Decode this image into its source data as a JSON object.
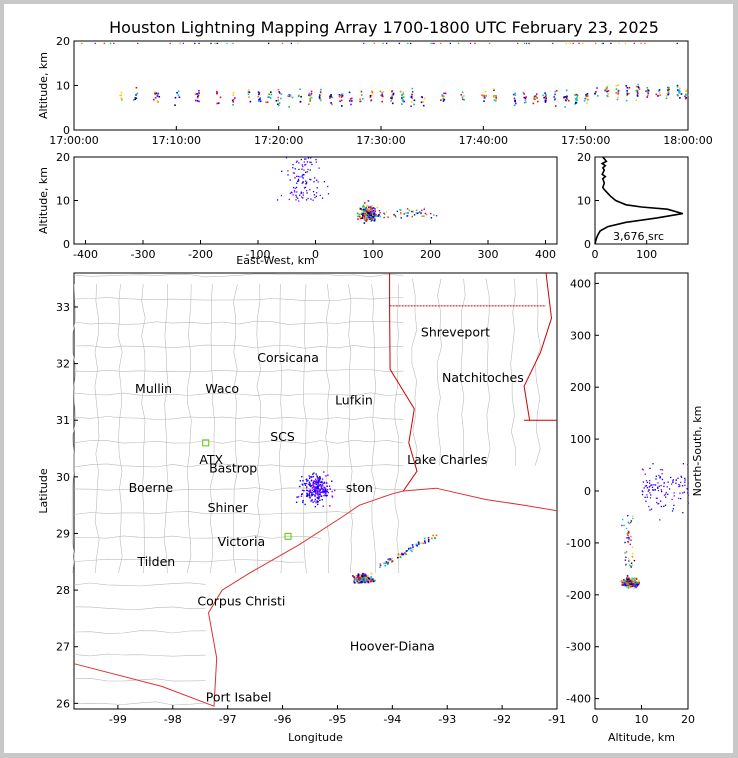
{
  "title": "Houston Lightning Mapping Array 1700-1800 UTC February 23, 2025",
  "chart_data": [
    {
      "id": "time_height",
      "type": "scatter",
      "ylabel": "Altitude, km",
      "xlabel": "",
      "xticks": [
        "17:00:00",
        "17:10:00",
        "17:20:00",
        "17:30:00",
        "17:40:00",
        "17:50:00",
        "18:00:00"
      ],
      "xlim_minutes": [
        0,
        60
      ],
      "yticks": [
        0,
        10,
        20
      ],
      "ylim": [
        0,
        20
      ],
      "activity_minutes": [
        4.5,
        6,
        8,
        10,
        12,
        14,
        15.5,
        17,
        18,
        19,
        20,
        21,
        22,
        23,
        24,
        25,
        26,
        27,
        28,
        29,
        30,
        31,
        32,
        33,
        34,
        36,
        38,
        40,
        41,
        43,
        44,
        45,
        46,
        47,
        48,
        49,
        50,
        51,
        52,
        53,
        54,
        55,
        56,
        57,
        58,
        59,
        59.8
      ]
    },
    {
      "id": "ew_height",
      "type": "scatter",
      "xlabel": "East-West, km",
      "ylabel": "Altitude, km",
      "xticks": [
        -400,
        -300,
        -200,
        -100,
        0,
        100,
        200,
        300,
        400
      ],
      "xlim": [
        -420,
        420
      ],
      "yticks": [
        0,
        10,
        20
      ],
      "ylim": [
        0,
        20
      ]
    },
    {
      "id": "histogram",
      "type": "line",
      "xticks": [
        0,
        100
      ],
      "xlim": [
        0,
        180
      ],
      "yticks": [
        0,
        10,
        20
      ],
      "ylim": [
        0,
        20
      ],
      "annotation": "3,676 src",
      "x": [
        0,
        2,
        5,
        10,
        25,
        60,
        120,
        170,
        140,
        90,
        60,
        40,
        30,
        22,
        18,
        15,
        18,
        15,
        20,
        14,
        18,
        15,
        20,
        14,
        22,
        15
      ],
      "y": [
        0,
        1,
        2,
        3,
        4,
        5,
        6,
        7,
        8,
        8.5,
        9,
        10,
        11,
        12,
        12.5,
        13,
        14,
        15,
        15.5,
        16,
        17,
        17.5,
        18,
        18.5,
        19,
        20
      ]
    },
    {
      "id": "plan_view",
      "type": "scatter",
      "xlabel": "Longitude",
      "ylabel": "Latitude",
      "xticks": [
        -99,
        -98,
        -97,
        -96,
        -95,
        -94,
        -93,
        -92,
        -91
      ],
      "xlim": [
        -99.8,
        -91
      ],
      "yticks": [
        26,
        27,
        28,
        29,
        30,
        31,
        32,
        33
      ],
      "ylim": [
        25.9,
        33.6
      ]
    },
    {
      "id": "ns_height",
      "type": "scatter",
      "xlabel": "Altitude, km",
      "ylabel": "North-South, km",
      "xticks": [
        0,
        10,
        20
      ],
      "xlim": [
        0,
        20
      ],
      "yticks": [
        400,
        300,
        200,
        100,
        0,
        -100,
        -200,
        -300,
        -400
      ],
      "ylim": [
        -420,
        420
      ]
    }
  ],
  "map_labels": [
    {
      "name": "Shreveport",
      "lon": -92.85,
      "lat": 32.55,
      "color": "#000000"
    },
    {
      "name": "Corsicana",
      "lon": -95.9,
      "lat": 32.1,
      "color": "#000000"
    },
    {
      "name": "Natchitoches",
      "lon": -92.35,
      "lat": 31.75,
      "color": "#000000"
    },
    {
      "name": "Mullin",
      "lon": -98.35,
      "lat": 31.55,
      "color": "#f08a4b"
    },
    {
      "name": "Waco",
      "lon": -97.1,
      "lat": 31.55,
      "color": "#000000"
    },
    {
      "name": "Lufkin",
      "lon": -94.7,
      "lat": 31.35,
      "color": "#000000"
    },
    {
      "name": "SCS",
      "lon": -96.0,
      "lat": 30.7,
      "color": "#7a0a0a"
    },
    {
      "name": "ATX",
      "lon": -97.3,
      "lat": 30.3,
      "color": "#f08a4b"
    },
    {
      "name": "Bastrop",
      "lon": -96.9,
      "lat": 30.15,
      "color": "#000000"
    },
    {
      "name": "Lake Charles",
      "lon": -93.0,
      "lat": 30.3,
      "color": "#000000"
    },
    {
      "name": "Boerne",
      "lon": -98.4,
      "lat": 29.8,
      "color": "#000000"
    },
    {
      "name": "ston",
      "lon": -94.6,
      "lat": 29.8,
      "color": "#f5a623"
    },
    {
      "name": "Shiner",
      "lon": -97.0,
      "lat": 29.45,
      "color": "#000000"
    },
    {
      "name": "Victoria",
      "lon": -96.75,
      "lat": 28.85,
      "color": "#000000"
    },
    {
      "name": "Tilden",
      "lon": -98.3,
      "lat": 28.5,
      "color": "#000000"
    },
    {
      "name": "Corpus Christi",
      "lon": -96.75,
      "lat": 27.8,
      "color": "#000000"
    },
    {
      "name": "Hoover-Diana",
      "lon": -94.0,
      "lat": 27.0,
      "color": "#0000ee"
    },
    {
      "name": "Port Isabel",
      "lon": -96.8,
      "lat": 26.1,
      "color": "#000000"
    }
  ],
  "colors": {
    "storm_core": "#ff0000",
    "source_colors": [
      "#0000ff",
      "#7a00ff",
      "#00c0ff",
      "#00cc44",
      "#ffcc00",
      "#ff6600",
      "#ff0000",
      "#000080"
    ],
    "coast": "#e03030",
    "county": "#bbbbbb",
    "state": "#cc0000"
  }
}
